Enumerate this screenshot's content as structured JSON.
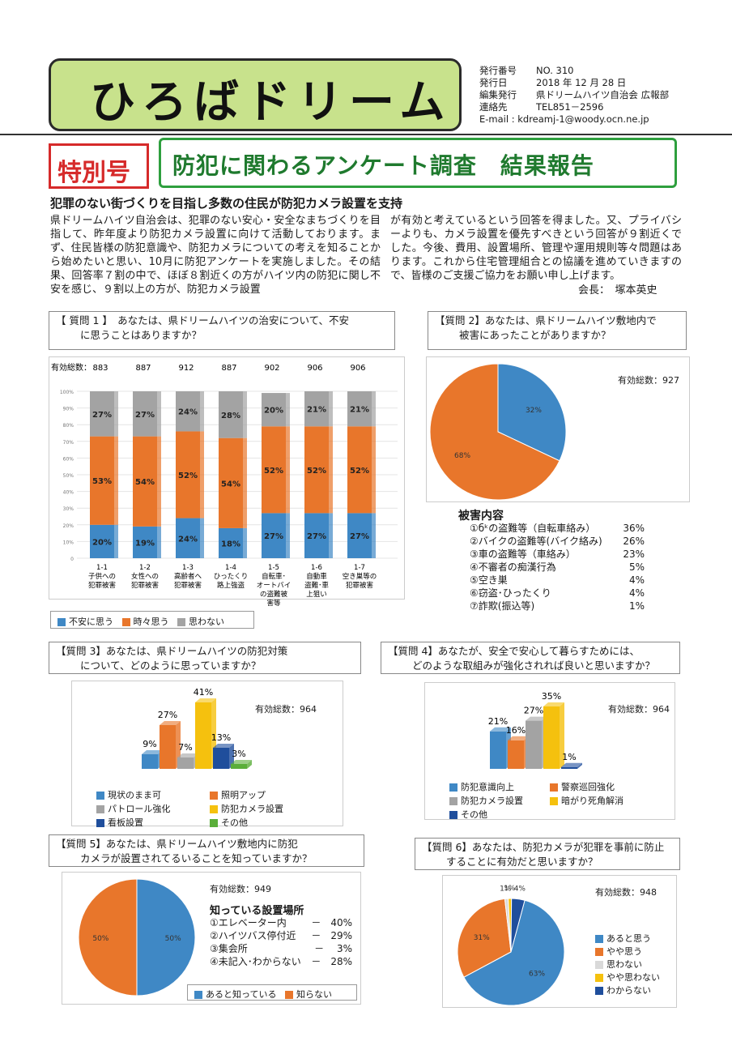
{
  "masthead": {
    "title": "ひろばドリーム"
  },
  "issue": {
    "rows": [
      {
        "k": "発行番号",
        "v": "NO. 310"
      },
      {
        "k": "発行日",
        "v": "2018 年 12 月 28 日"
      },
      {
        "k": "編集発行",
        "v": "県ドリームハイツ自治会 広報部"
      },
      {
        "k": "連絡先",
        "v": "TEL851－2596"
      },
      {
        "k": "E-mail",
        "v": ": kdreamj-1@woody.ocn.ne.jp"
      }
    ]
  },
  "special_label": "特別号",
  "banner_title": "防犯に関わるアンケート調査　結果報告",
  "lede": "犯罪のない街づくりを目指し多数の住民が防犯カメラ設置を支持",
  "article": {
    "col1": "県ドリームハイツ自治会は、犯罪のない安心・安全なまちづくりを目指して、昨年度より防犯カメラ設置に向けて活動しております。まず、住民皆様の防犯意識や、防犯カメラについての考えを知ることから始めたいと思い、10月に防犯アンケートを実施しました。その結果、回答率７割の中で、ほぼ８割近くの方がハイツ内の防犯に関し不安を感じ、９割以上の方が、防犯カメラ設置",
    "col2": "が有効と考えているという回答を得ました。又、プライバシーよりも、カメラ設置を優先すべきという回答が９割近くでした。今後、費用、設置場所、管理や運用規則等々問題はあります。これから住宅管理組合との協議を進めていきますので、皆様のご支援ご協力をお願い申し上げます。",
    "signature": "会長：　塚本英史"
  },
  "q1": {
    "q_line1": "【 質問 1 】　あなたは、県ドリームハイツの治安について、不安",
    "q_line2": "に思うことはありますか？",
    "total_label": "有効総数：",
    "totals": [
      "883",
      "887",
      "912",
      "887",
      "902",
      "906",
      "906"
    ]
  },
  "q2": {
    "q_line1": "【質問 2】あなたは、県ドリームハイツ敷地内で",
    "q_line2": "被害にあったことがありますか？",
    "total": "有効総数：927",
    "damage_title": "被害内容",
    "damage_items": [
      {
        "label": "①бᵏの盗難等（自転車絡み）",
        "value": "36%"
      },
      {
        "label": "②バイクの盗難等(バイク絡み)",
        "value": "26%"
      },
      {
        "label": "③車の盗難等（車絡み）",
        "value": "23%"
      },
      {
        "label": "④不審者の痴漢行為",
        "value": "5%"
      },
      {
        "label": "⑤空き巣",
        "value": "4%"
      },
      {
        "label": "⑥窃盗･ひったくり",
        "value": "4%"
      },
      {
        "label": "⑦詐欺(振込等)",
        "value": "1%"
      }
    ]
  },
  "q3": {
    "q_line1": "【質問 3】あなたは、県ドリームハイツの防犯対策",
    "q_line2": "について、どのように思っていますか？",
    "total": "有効総数：964"
  },
  "q4": {
    "q_line1": "【質問 4】あなたが、安全で安心して暮らすためには、",
    "q_line2": "どのような取組みが強化されれば良いと思いますか？",
    "total": "有効総数：964"
  },
  "q5": {
    "q_line1": "【質問 5】あなたは、県ドリームハイツ敷地内に防犯",
    "q_line2": "カメラが設置されてるいることを知っていますか？",
    "total": "有効総数：949",
    "places_title": "知っている設置場所",
    "places": [
      {
        "label": "①エレベーター内",
        "value": "－　40%"
      },
      {
        "label": "②ハイツバス停付近",
        "value": "－　29%"
      },
      {
        "label": "③集会所",
        "value": "－　 3%"
      },
      {
        "label": "④未記入･わからない",
        "value": "－　28%"
      }
    ]
  },
  "q6": {
    "q_line1": "【質問 6】あなたは、防犯カメラが犯罪を事前に防止",
    "q_line2": "することに有効だと思いますか？",
    "total": "有効総数：948"
  },
  "colors": {
    "blue": "#3f88c5",
    "orange": "#e8762b",
    "gray": "#a3a3a3",
    "yellow": "#f5c10e",
    "navy": "#1f4e9c",
    "green": "#5aae3a"
  },
  "chart_data": [
    {
      "id": "q1",
      "type": "bar",
      "stacked": true,
      "categories": [
        "1-1\n子供への\n犯罪被害",
        "1-2\n女性への\n犯罪被害",
        "1-3\n高齢者へ\n犯罪被害",
        "1-4\nひったくり\n路上強盗",
        "1-5\n自転車･\nオートバイ\nの盗難被\n害等",
        "1-6\n自動車\n盗難･車\n上狙い",
        "1-7\n空き巣等の\n犯罪被害"
      ],
      "series": [
        {
          "name": "不安に思う",
          "values": [
            20,
            19,
            24,
            18,
            27,
            27,
            27
          ]
        },
        {
          "name": "時々思う",
          "values": [
            53,
            54,
            52,
            54,
            52,
            52,
            52
          ]
        },
        {
          "name": "思わない",
          "values": [
            27,
            27,
            24,
            28,
            20,
            21,
            21
          ]
        }
      ],
      "y_ticks": [
        "0",
        "10%",
        "20%",
        "30%",
        "40%",
        "50%",
        "60%",
        "70%",
        "80%",
        "90%",
        "100%"
      ],
      "ylim": [
        0,
        100
      ]
    },
    {
      "id": "q2",
      "type": "pie",
      "slices": [
        {
          "name": "",
          "value": 32,
          "label": "32%"
        },
        {
          "name": "",
          "value": 68,
          "label": "68%"
        }
      ]
    },
    {
      "id": "q3",
      "type": "bar",
      "categories": [
        "現状のまま可",
        "照明アップ",
        "パトロール強化",
        "防犯カメラ設置",
        "看板設置",
        "その他"
      ],
      "values": [
        9,
        27,
        7,
        41,
        13,
        3
      ],
      "labels": [
        "9%",
        "27%",
        "7%",
        "41%",
        "13%",
        "3%"
      ]
    },
    {
      "id": "q4",
      "type": "bar",
      "categories": [
        "防犯意識向上",
        "警察巡回強化",
        "防犯カメラ設置",
        "暗がり死角解消",
        "その他"
      ],
      "values": [
        21,
        16,
        27,
        35,
        1
      ],
      "labels": [
        "21%",
        "16%",
        "27%",
        "35%",
        "1%"
      ]
    },
    {
      "id": "q5",
      "type": "pie",
      "slices": [
        {
          "name": "あると知っている",
          "value": 50,
          "label": "50%"
        },
        {
          "name": "知らない",
          "value": 50,
          "label": "50%"
        }
      ]
    },
    {
      "id": "q6",
      "type": "pie",
      "slices": [
        {
          "name": "あると思う",
          "value": 63,
          "label": "63%"
        },
        {
          "name": "やや思う",
          "value": 31,
          "label": "31%"
        },
        {
          "name": "思わない",
          "value": 1,
          "label": "1%"
        },
        {
          "name": "やや思わない",
          "value": 1,
          "label": "1%"
        },
        {
          "name": "わからない",
          "value": 4,
          "label": "4%"
        }
      ]
    }
  ]
}
